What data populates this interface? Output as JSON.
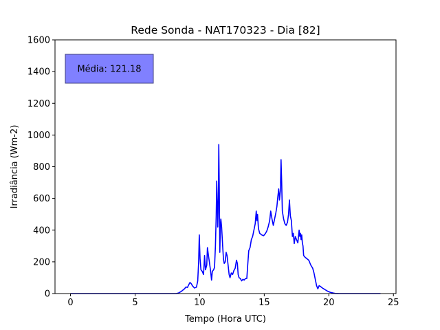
{
  "chart_data": {
    "type": "line",
    "title": "Rede Sonda - NAT170323 - Dia [82]",
    "xlabel": "Tempo (Hora UTC)",
    "ylabel": "Irradiância (Wm-2)",
    "xlim": [
      -1.2,
      25.2
    ],
    "ylim": [
      0,
      1600
    ],
    "xticks": [
      0,
      5,
      10,
      15,
      20,
      25
    ],
    "yticks": [
      0,
      200,
      400,
      600,
      800,
      1000,
      1200,
      1400,
      1600
    ],
    "grid": false,
    "annotation": {
      "text": "Média: 121.18",
      "placement": "top-left",
      "box_color": "#8080ff"
    },
    "series": [
      {
        "color": "#0000ff",
        "points": [
          [
            0,
            0
          ],
          [
            8.2,
            0
          ],
          [
            8.4,
            5
          ],
          [
            8.6,
            15
          ],
          [
            8.8,
            28
          ],
          [
            8.95,
            42
          ],
          [
            9.05,
            38
          ],
          [
            9.15,
            55
          ],
          [
            9.25,
            70
          ],
          [
            9.35,
            62
          ],
          [
            9.45,
            48
          ],
          [
            9.6,
            35
          ],
          [
            9.75,
            40
          ],
          [
            9.85,
            80
          ],
          [
            9.92,
            200
          ],
          [
            9.97,
            370
          ],
          [
            10.03,
            220
          ],
          [
            10.1,
            150
          ],
          [
            10.2,
            140
          ],
          [
            10.3,
            120
          ],
          [
            10.38,
            240
          ],
          [
            10.45,
            150
          ],
          [
            10.55,
            180
          ],
          [
            10.6,
            290
          ],
          [
            10.68,
            240
          ],
          [
            10.75,
            200
          ],
          [
            10.85,
            140
          ],
          [
            10.92,
            85
          ],
          [
            10.98,
            140
          ],
          [
            11.08,
            150
          ],
          [
            11.15,
            165
          ],
          [
            11.22,
            300
          ],
          [
            11.28,
            490
          ],
          [
            11.32,
            710
          ],
          [
            11.36,
            580
          ],
          [
            11.4,
            420
          ],
          [
            11.45,
            600
          ],
          [
            11.48,
            940
          ],
          [
            11.52,
            650
          ],
          [
            11.56,
            260
          ],
          [
            11.6,
            410
          ],
          [
            11.64,
            470
          ],
          [
            11.7,
            420
          ],
          [
            11.78,
            300
          ],
          [
            11.84,
            220
          ],
          [
            11.9,
            190
          ],
          [
            11.98,
            200
          ],
          [
            12.05,
            260
          ],
          [
            12.12,
            240
          ],
          [
            12.2,
            180
          ],
          [
            12.28,
            120
          ],
          [
            12.35,
            100
          ],
          [
            12.45,
            130
          ],
          [
            12.55,
            120
          ],
          [
            12.65,
            145
          ],
          [
            12.75,
            160
          ],
          [
            12.85,
            210
          ],
          [
            12.92,
            190
          ],
          [
            12.98,
            120
          ],
          [
            13.05,
            100
          ],
          [
            13.15,
            95
          ],
          [
            13.25,
            80
          ],
          [
            13.35,
            90
          ],
          [
            13.45,
            85
          ],
          [
            13.55,
            95
          ],
          [
            13.65,
            95
          ],
          [
            13.72,
            180
          ],
          [
            13.8,
            270
          ],
          [
            13.9,
            290
          ],
          [
            14.0,
            340
          ],
          [
            14.1,
            360
          ],
          [
            14.2,
            400
          ],
          [
            14.3,
            440
          ],
          [
            14.38,
            520
          ],
          [
            14.43,
            460
          ],
          [
            14.48,
            500
          ],
          [
            14.55,
            410
          ],
          [
            14.65,
            380
          ],
          [
            14.8,
            370
          ],
          [
            14.95,
            365
          ],
          [
            15.1,
            380
          ],
          [
            15.2,
            395
          ],
          [
            15.3,
            420
          ],
          [
            15.42,
            460
          ],
          [
            15.5,
            520
          ],
          [
            15.6,
            470
          ],
          [
            15.7,
            430
          ],
          [
            15.8,
            470
          ],
          [
            15.9,
            510
          ],
          [
            15.98,
            550
          ],
          [
            16.05,
            610
          ],
          [
            16.12,
            660
          ],
          [
            16.18,
            590
          ],
          [
            16.25,
            650
          ],
          [
            16.3,
            845
          ],
          [
            16.35,
            700
          ],
          [
            16.4,
            520
          ],
          [
            16.5,
            470
          ],
          [
            16.6,
            440
          ],
          [
            16.7,
            430
          ],
          [
            16.8,
            450
          ],
          [
            16.88,
            500
          ],
          [
            16.95,
            590
          ],
          [
            17.02,
            490
          ],
          [
            17.1,
            460
          ],
          [
            17.18,
            360
          ],
          [
            17.25,
            380
          ],
          [
            17.32,
            315
          ],
          [
            17.4,
            360
          ],
          [
            17.5,
            340
          ],
          [
            17.6,
            320
          ],
          [
            17.7,
            400
          ],
          [
            17.75,
            360
          ],
          [
            17.8,
            380
          ],
          [
            17.85,
            340
          ],
          [
            17.9,
            370
          ],
          [
            17.95,
            320
          ],
          [
            18.0,
            300
          ],
          [
            18.05,
            240
          ],
          [
            18.15,
            230
          ],
          [
            18.3,
            220
          ],
          [
            18.45,
            210
          ],
          [
            18.6,
            180
          ],
          [
            18.75,
            160
          ],
          [
            18.85,
            130
          ],
          [
            18.95,
            90
          ],
          [
            19.05,
            50
          ],
          [
            19.15,
            30
          ],
          [
            19.25,
            50
          ],
          [
            19.35,
            45
          ],
          [
            19.5,
            35
          ],
          [
            19.7,
            25
          ],
          [
            19.9,
            15
          ],
          [
            20.1,
            8
          ],
          [
            20.3,
            4
          ],
          [
            20.5,
            1
          ],
          [
            20.8,
            0
          ],
          [
            24,
            0
          ]
        ]
      }
    ]
  }
}
